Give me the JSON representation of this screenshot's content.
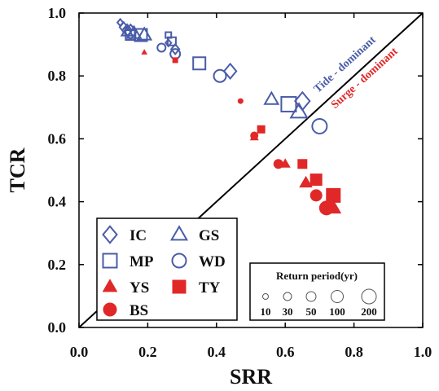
{
  "colors": {
    "blue": "#4a5ca8",
    "red": "#e02828",
    "line": "#000000"
  },
  "chart_data": {
    "type": "scatter",
    "xlabel": "SRR",
    "ylabel": "TCR",
    "xlim": [
      0.0,
      1.0
    ],
    "ylim": [
      0.0,
      1.0
    ],
    "xticks": [
      "0.0",
      "0.2",
      "0.4",
      "0.6",
      "0.8",
      "1.0"
    ],
    "yticks": [
      "0.0",
      "0.2",
      "0.4",
      "0.6",
      "0.8",
      "1.0"
    ],
    "grid": false,
    "reference_line": {
      "from": [
        0,
        0
      ],
      "to": [
        1,
        1
      ]
    },
    "region_labels": {
      "above": "Tide - dominant",
      "below": "Surge - dominant"
    },
    "legend": {
      "placement": "bottom-left",
      "entries": [
        {
          "name": "IC",
          "marker": "diamond",
          "color": "blue",
          "filled": false
        },
        {
          "name": "GS",
          "marker": "triangle",
          "color": "blue",
          "filled": false
        },
        {
          "name": "MP",
          "marker": "square",
          "color": "blue",
          "filled": false
        },
        {
          "name": "WD",
          "marker": "circle",
          "color": "blue",
          "filled": false
        },
        {
          "name": "YS",
          "marker": "triangle",
          "color": "red",
          "filled": true
        },
        {
          "name": "TY",
          "marker": "square",
          "color": "red",
          "filled": true
        },
        {
          "name": "BS",
          "marker": "circle",
          "color": "red",
          "filled": true
        }
      ]
    },
    "size_legend": {
      "placement": "bottom-right",
      "title": "Return period(yr)",
      "values": [
        10,
        30,
        50,
        100,
        200
      ],
      "labels": [
        "10",
        "30",
        "50",
        "100",
        "200"
      ]
    },
    "series": [
      {
        "name": "IC",
        "marker": "diamond",
        "color": "blue",
        "filled": false,
        "points": [
          {
            "x": 0.12,
            "y": 0.97,
            "rp": 10
          },
          {
            "x": 0.13,
            "y": 0.955,
            "rp": 30
          },
          {
            "x": 0.14,
            "y": 0.945,
            "rp": 50
          },
          {
            "x": 0.15,
            "y": 0.94,
            "rp": 100
          },
          {
            "x": 0.26,
            "y": 0.905,
            "rp": 10
          },
          {
            "x": 0.28,
            "y": 0.885,
            "rp": 30
          },
          {
            "x": 0.44,
            "y": 0.815,
            "rp": 100
          },
          {
            "x": 0.65,
            "y": 0.72,
            "rp": 200
          }
        ]
      },
      {
        "name": "GS",
        "marker": "triangle",
        "color": "blue",
        "filled": false,
        "points": [
          {
            "x": 0.14,
            "y": 0.94,
            "rp": 50
          },
          {
            "x": 0.16,
            "y": 0.935,
            "rp": 100
          },
          {
            "x": 0.19,
            "y": 0.93,
            "rp": 100
          },
          {
            "x": 0.56,
            "y": 0.725,
            "rp": 100
          },
          {
            "x": 0.64,
            "y": 0.685,
            "rp": 200
          }
        ]
      },
      {
        "name": "MP",
        "marker": "square",
        "color": "blue",
        "filled": false,
        "points": [
          {
            "x": 0.15,
            "y": 0.93,
            "rp": 50
          },
          {
            "x": 0.18,
            "y": 0.93,
            "rp": 100
          },
          {
            "x": 0.26,
            "y": 0.93,
            "rp": 10
          },
          {
            "x": 0.27,
            "y": 0.91,
            "rp": 30
          },
          {
            "x": 0.35,
            "y": 0.84,
            "rp": 100
          },
          {
            "x": 0.61,
            "y": 0.71,
            "rp": 200
          }
        ]
      },
      {
        "name": "WD",
        "marker": "circle",
        "color": "blue",
        "filled": false,
        "points": [
          {
            "x": 0.24,
            "y": 0.89,
            "rp": 30
          },
          {
            "x": 0.28,
            "y": 0.87,
            "rp": 50
          },
          {
            "x": 0.41,
            "y": 0.8,
            "rp": 100
          },
          {
            "x": 0.7,
            "y": 0.64,
            "rp": 200
          }
        ]
      },
      {
        "name": "YS",
        "marker": "triangle",
        "color": "red",
        "filled": true,
        "points": [
          {
            "x": 0.19,
            "y": 0.875,
            "rp": 10
          },
          {
            "x": 0.51,
            "y": 0.605,
            "rp": 30
          },
          {
            "x": 0.6,
            "y": 0.52,
            "rp": 50
          },
          {
            "x": 0.66,
            "y": 0.46,
            "rp": 100
          },
          {
            "x": 0.74,
            "y": 0.38,
            "rp": 200
          }
        ]
      },
      {
        "name": "TY",
        "marker": "square",
        "color": "red",
        "filled": true,
        "points": [
          {
            "x": 0.28,
            "y": 0.85,
            "rp": 10
          },
          {
            "x": 0.53,
            "y": 0.63,
            "rp": 30
          },
          {
            "x": 0.65,
            "y": 0.52,
            "rp": 50
          },
          {
            "x": 0.69,
            "y": 0.47,
            "rp": 100
          },
          {
            "x": 0.74,
            "y": 0.42,
            "rp": 200
          }
        ]
      },
      {
        "name": "BS",
        "marker": "circle",
        "color": "red",
        "filled": true,
        "points": [
          {
            "x": 0.47,
            "y": 0.72,
            "rp": 10
          },
          {
            "x": 0.51,
            "y": 0.61,
            "rp": 30
          },
          {
            "x": 0.58,
            "y": 0.52,
            "rp": 50
          },
          {
            "x": 0.69,
            "y": 0.42,
            "rp": 100
          },
          {
            "x": 0.72,
            "y": 0.38,
            "rp": 200
          }
        ]
      }
    ]
  }
}
